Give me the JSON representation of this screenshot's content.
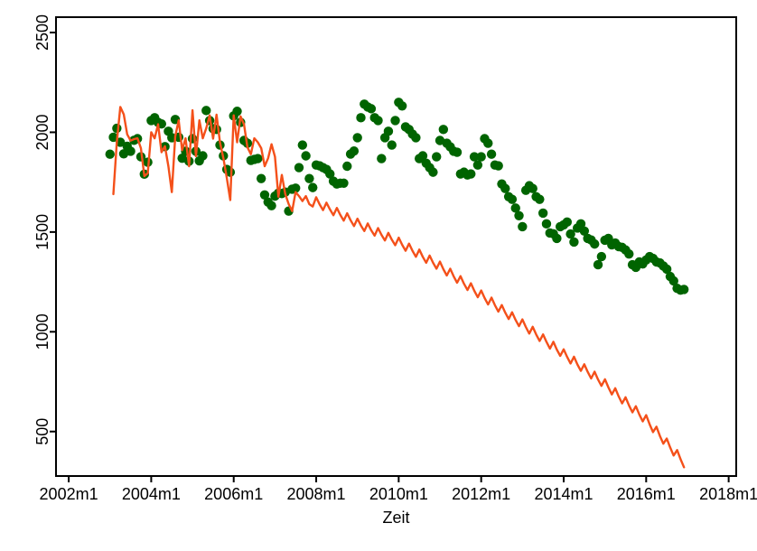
{
  "chart_data": {
    "type": "scatter",
    "title": "",
    "xlabel": "Zeit",
    "ylabel": "",
    "grid": false,
    "legend": "none",
    "x_axis": {
      "unit": "month",
      "range_months_rel_2002m1": [
        -3.7,
        194.2
      ],
      "ticks": [
        {
          "m": 0,
          "label": "2002m1"
        },
        {
          "m": 24,
          "label": "2004m1"
        },
        {
          "m": 48,
          "label": "2006m1"
        },
        {
          "m": 72,
          "label": "2008m1"
        },
        {
          "m": 96,
          "label": "2010m1"
        },
        {
          "m": 120,
          "label": "2012m1"
        },
        {
          "m": 144,
          "label": "2014m1"
        },
        {
          "m": 168,
          "label": "2016m1"
        },
        {
          "m": 192,
          "label": "2018m1"
        }
      ]
    },
    "y_axis": {
      "range": [
        277,
        2577
      ],
      "ticks": [
        {
          "v": 500,
          "label": "500"
        },
        {
          "v": 1000,
          "label": "1000"
        },
        {
          "v": 1500,
          "label": "1500"
        },
        {
          "v": 2000,
          "label": "2000"
        },
        {
          "v": 2500,
          "label": "2500"
        }
      ]
    },
    "series": [
      {
        "id": "green-dots",
        "render": "scatter",
        "color": "#006400",
        "marker_radius": 5.2,
        "start_month_label": "2003m1",
        "start_month_rel_2002m1": 12,
        "frequency": "monthly",
        "values": [
          1890,
          1975,
          2020,
          1950,
          1892,
          1930,
          1905,
          1960,
          1968,
          1877,
          1790,
          1850,
          2059,
          2073,
          2050,
          2042,
          1928,
          2005,
          1973,
          2064,
          1975,
          1870,
          1905,
          1855,
          1968,
          1905,
          1857,
          1882,
          2109,
          2059,
          2018,
          2014,
          1936,
          1882,
          1814,
          1800,
          2082,
          2105,
          2050,
          1959,
          1945,
          1859,
          1864,
          1868,
          1768,
          1686,
          1650,
          1632,
          1680,
          1695,
          1693,
          1700,
          1605,
          1715,
          1720,
          1823,
          1936,
          1882,
          1768,
          1723,
          1836,
          1832,
          1823,
          1814,
          1791,
          1755,
          1741,
          1745,
          1745,
          1830,
          1891,
          1906,
          1973,
          2073,
          2141,
          2127,
          2118,
          2073,
          2059,
          1868,
          1973,
          2005,
          1936,
          2059,
          2150,
          2132,
          2027,
          2014,
          1991,
          1973,
          1868,
          1882,
          1845,
          1823,
          1800,
          1877,
          1959,
          2014,
          1945,
          1927,
          1905,
          1900,
          1791,
          1800,
          1786,
          1791,
          1877,
          1836,
          1877,
          1968,
          1945,
          1890,
          1836,
          1832,
          1741,
          1718,
          1677,
          1664,
          1620,
          1582,
          1527,
          1709,
          1732,
          1718,
          1677,
          1664,
          1595,
          1541,
          1495,
          1491,
          1468,
          1527,
          1536,
          1550,
          1490,
          1450,
          1520,
          1541,
          1505,
          1468,
          1460,
          1440,
          1336,
          1377,
          1459,
          1468,
          1436,
          1445,
          1427,
          1423,
          1410,
          1390,
          1336,
          1323,
          1350,
          1340,
          1360,
          1377,
          1368,
          1350,
          1345,
          1330,
          1314,
          1277,
          1255,
          1218,
          1209,
          1212
        ]
      },
      {
        "id": "orange-line",
        "render": "line",
        "color": "#f4501a",
        "line_width": 2.4,
        "start_month_label": "2003m2",
        "start_month_rel_2002m1": 13,
        "frequency": "monthly",
        "values": [
          1690,
          1950,
          2127,
          2090,
          1990,
          1958,
          1966,
          1970,
          1920,
          1780,
          1795,
          2000,
          1970,
          2040,
          1900,
          1930,
          1830,
          1700,
          1980,
          2060,
          1910,
          1970,
          1830,
          2110,
          1880,
          2060,
          1970,
          2020,
          2085,
          1968,
          2088,
          1950,
          1870,
          1770,
          1660,
          2085,
          1950,
          2080,
          2040,
          1925,
          1890,
          1970,
          1950,
          1920,
          1830,
          1870,
          1940,
          1877,
          1677,
          1786,
          1690,
          1640,
          1605,
          1700,
          1680,
          1655,
          1680,
          1640,
          1628,
          1674,
          1639,
          1610,
          1647,
          1613,
          1584,
          1621,
          1586,
          1557,
          1594,
          1559,
          1530,
          1567,
          1533,
          1505,
          1543,
          1509,
          1482,
          1520,
          1486,
          1458,
          1496,
          1462,
          1434,
          1472,
          1436,
          1406,
          1442,
          1406,
          1376,
          1412,
          1376,
          1346,
          1382,
          1346,
          1316,
          1352,
          1314,
          1282,
          1316,
          1278,
          1246,
          1279,
          1241,
          1209,
          1243,
          1205,
          1173,
          1207,
          1169,
          1137,
          1171,
          1133,
          1101,
          1134,
          1096,
          1064,
          1098,
          1060,
          1028,
          1062,
          1024,
          991,
          1025,
          986,
          954,
          987,
          949,
          916,
          950,
          911,
          879,
          912,
          874,
          841,
          875,
          836,
          804,
          837,
          799,
          766,
          800,
          761,
          729,
          762,
          721,
          686,
          717,
          676,
          641,
          672,
          631,
          596,
          627,
          586,
          551,
          582,
          537,
          497,
          524,
          478,
          439,
          465,
          420,
          380,
          407,
          361,
          321
        ]
      }
    ],
    "axis_color": "#000000",
    "background_color": "#ffffff"
  }
}
